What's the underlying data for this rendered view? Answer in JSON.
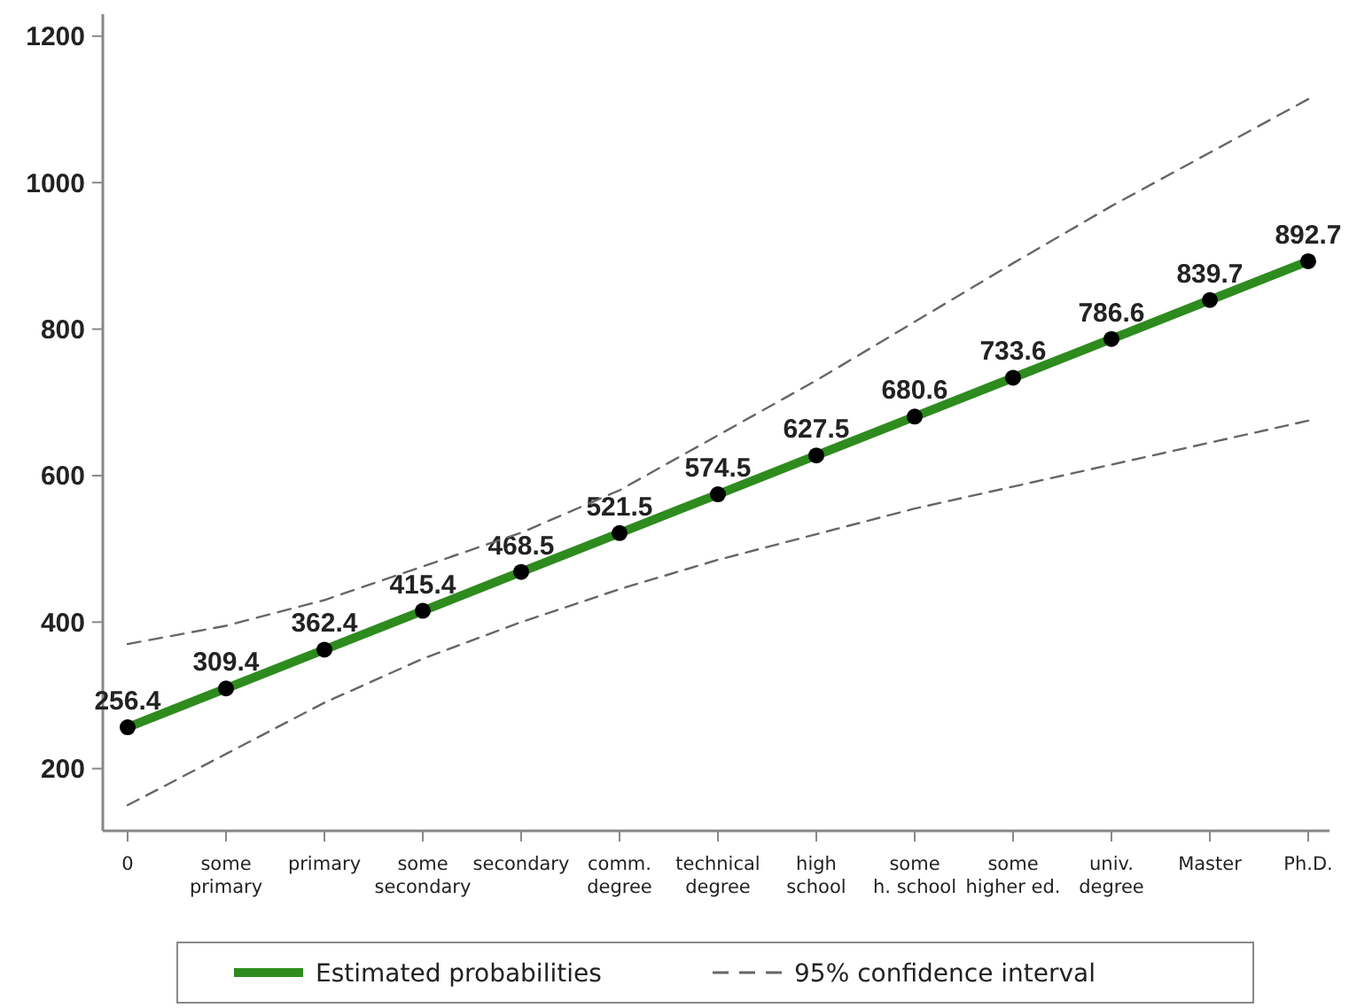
{
  "chart_data": {
    "type": "line",
    "categories": [
      "0",
      "some\nprimary",
      "primary",
      "some\nsecondary",
      "secondary",
      "comm.\ndegree",
      "technical\ndegree",
      "high\nschool",
      "some\nh. school",
      "some\nhigher ed.",
      "univ.\ndegree",
      "Master",
      "Ph.D."
    ],
    "series": [
      {
        "name": "Estimated probabilities",
        "color": "#2e8b1e",
        "values": [
          256.4,
          309.4,
          362.4,
          415.4,
          468.5,
          521.5,
          574.5,
          627.5,
          680.6,
          733.6,
          786.6,
          839.7,
          892.7
        ],
        "value_labels": [
          "256.4",
          "309.4",
          "362.4",
          "415.4",
          "468.5",
          "521.5",
          "574.5",
          "627.5",
          "680.6",
          "733.6",
          "786.6",
          "839.7",
          "892.7"
        ],
        "marker": "circle",
        "line_style": "solid"
      },
      {
        "name": "95% confidence interval",
        "color": "#666666",
        "values": [
          370,
          395,
          430,
          476,
          522,
          580,
          655,
          730,
          810,
          890,
          968,
          1041,
          1114
        ],
        "marker": "none",
        "line_style": "dashed"
      },
      {
        "color": "#666666",
        "values": [
          150,
          220,
          290,
          350,
          400,
          445,
          485,
          520,
          555,
          585,
          615,
          645,
          675
        ],
        "marker": "none",
        "line_style": "dashed"
      }
    ],
    "ylim": [
      115,
      1230
    ],
    "yticks": [
      200,
      400,
      600,
      800,
      1000,
      1200
    ],
    "grid": false,
    "legend": "bottom"
  }
}
